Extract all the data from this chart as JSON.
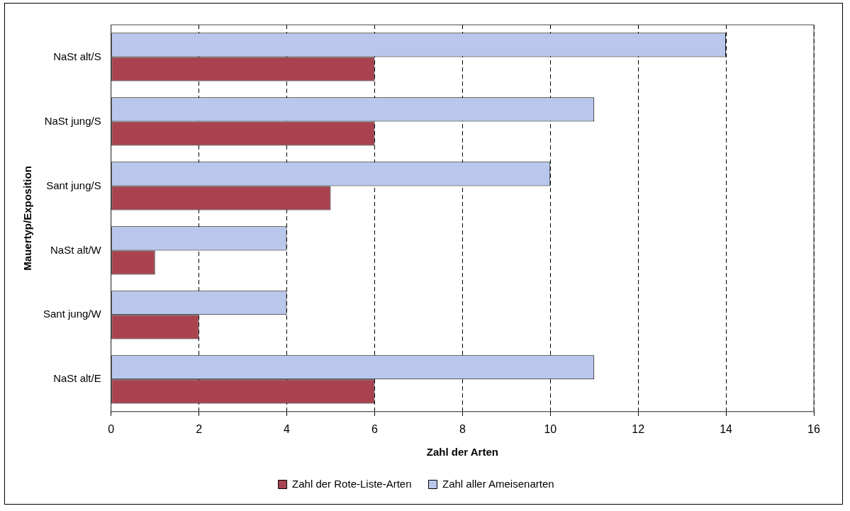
{
  "chart_data": {
    "type": "bar",
    "orientation": "horizontal",
    "xlabel": "Zahl der Arten",
    "ylabel": "Mauertyp/Exposition",
    "categories": [
      "NaSt alt/S",
      "NaSt jung/S",
      "Sant jung/S",
      "NaSt alt/W",
      "Sant jung/W",
      "NaSt alt/E"
    ],
    "series": [
      {
        "name": "Zahl der Rote-Liste-Arten",
        "color": "#a8434f",
        "values": [
          6,
          6,
          5,
          1,
          2,
          6
        ]
      },
      {
        "name": "Zahl aller Ameisenarten",
        "color": "#b9c7ec",
        "values": [
          14,
          11,
          10,
          4,
          4,
          11
        ]
      }
    ],
    "xlim": [
      0,
      16
    ],
    "xticks": [
      0,
      2,
      4,
      6,
      8,
      10,
      12,
      14,
      16
    ],
    "grid": "x",
    "legend": "bottom"
  }
}
